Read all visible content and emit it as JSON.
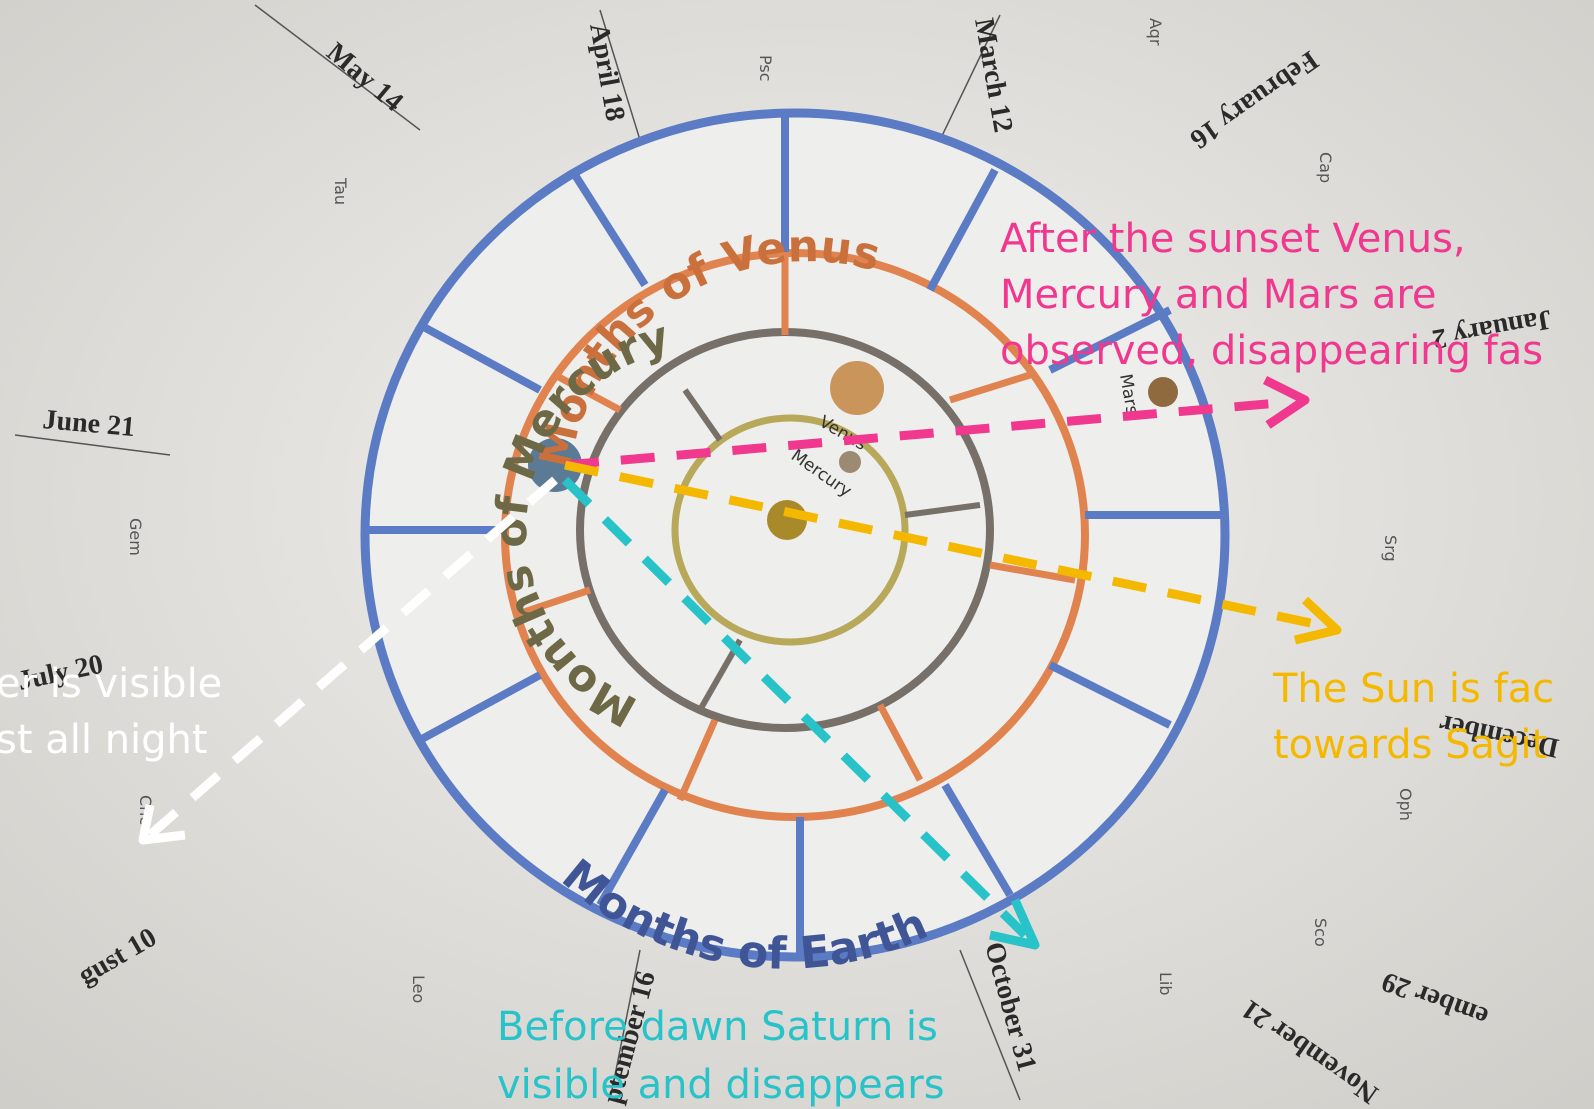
{
  "dates": [
    "May 14",
    "April 18",
    "March 12",
    "February 16",
    "January 2",
    "June 21",
    "July 20",
    "gust 10",
    "ptember 16",
    "October 31",
    "November 21",
    "ember 29",
    "December"
  ],
  "constellations": [
    "Tau",
    "Psc",
    "Aqr",
    "Cap",
    "Gem",
    "Cnc",
    "Leo",
    "Lib",
    "Sco",
    "Oph",
    "Srg"
  ],
  "rings": [
    "Months of Earth",
    "Months of Venus",
    "Months of Mercury"
  ],
  "planets": [
    "Venus",
    "Mercury",
    "Mars"
  ],
  "annotations": [
    {
      "lines": [
        "After the sunset Venus,",
        "Mercury and Mars are",
        "observed, disappearing fas"
      ]
    },
    {
      "lines": [
        "The Sun is fac",
        "towards Sagit"
      ]
    },
    {
      "lines": [
        "er is visible",
        "st all night"
      ]
    },
    {
      "lines": [
        "Before dawn Saturn is",
        "visible and disappears"
      ]
    }
  ]
}
